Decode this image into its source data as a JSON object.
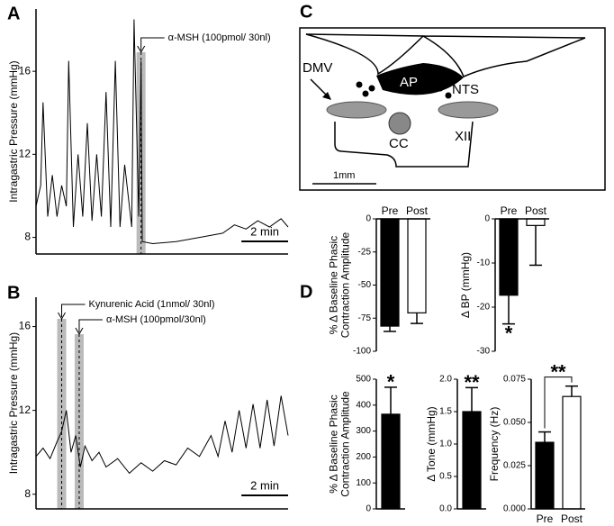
{
  "chart_data": [
    {
      "type": "line",
      "panel": "A",
      "ylabel": "Intragastric  Pressure  (mmHg)",
      "xlim": [
        0,
        10.8
      ],
      "ylim": [
        7.2,
        19
      ],
      "yticks": [
        8,
        12,
        16
      ],
      "scalebar": {
        "value": 2,
        "label": "2 min"
      },
      "annotations": [
        {
          "x": 4.5,
          "label": "α-MSH  (100pmol/ 30nl)"
        }
      ],
      "series": [
        {
          "color": "#000000",
          "x": [
            0,
            0.2,
            0.3,
            0.5,
            0.7,
            0.9,
            1.1,
            1.3,
            1.4,
            1.6,
            1.8,
            2.0,
            2.2,
            2.4,
            2.6,
            2.8,
            3.0,
            3.2,
            3.4,
            3.6,
            3.8,
            4.1,
            4.2,
            4.4,
            4.5,
            4.55,
            5,
            6,
            7,
            8,
            8.5,
            9,
            9.5,
            10,
            10.5,
            10.8
          ],
          "values": [
            9.5,
            10.5,
            14.5,
            9,
            11,
            9,
            10.5,
            9.5,
            16.5,
            8.5,
            12,
            9,
            13.5,
            8.8,
            12,
            9,
            15,
            8.5,
            16.5,
            8.5,
            11.5,
            8.5,
            18.5,
            9,
            16.5,
            7.8,
            7.7,
            7.8,
            8.0,
            8.2,
            8.6,
            8.4,
            8.8,
            8.5,
            8.9,
            8.5
          ]
        }
      ]
    },
    {
      "type": "line",
      "panel": "B",
      "ylabel": "Intragastric Pressure (mmHg)",
      "xlim": [
        0,
        10.8
      ],
      "ylim": [
        7.3,
        17.4
      ],
      "yticks": [
        8,
        12,
        16
      ],
      "scalebar": {
        "value": 2,
        "label": "2 min"
      },
      "annotations": [
        {
          "x": 1.1,
          "label": "Kynurenic Acid  (1nmol/ 30nl)"
        },
        {
          "x": 1.85,
          "label": "α-MSH (100pmol/30nl)"
        }
      ],
      "series": [
        {
          "color": "#000000",
          "x": [
            0,
            0.3,
            0.6,
            0.9,
            1.1,
            1.3,
            1.5,
            1.7,
            1.9,
            2.1,
            2.4,
            2.7,
            3,
            3.5,
            4,
            4.5,
            5,
            5.5,
            6,
            6.5,
            7,
            7.5,
            7.8,
            8.1,
            8.4,
            8.7,
            9,
            9.3,
            9.6,
            9.9,
            10.2,
            10.5,
            10.8
          ],
          "values": [
            9.8,
            10.2,
            9.7,
            10.5,
            11,
            12,
            10,
            10.8,
            9.3,
            10.3,
            9.6,
            10,
            9.3,
            9.7,
            9.0,
            9.5,
            9.1,
            9.6,
            9.4,
            10.2,
            9.8,
            10.8,
            9.8,
            11.5,
            10,
            12,
            10.2,
            12.3,
            10.2,
            12.5,
            10.3,
            12.7,
            10.8
          ]
        }
      ]
    },
    {
      "type": "bar",
      "panel": "D",
      "ylabel": [
        "% Δ  Baseline Phasic",
        "Contraction Amplitude"
      ],
      "categories": [
        "Pre",
        "Post"
      ],
      "colors": [
        "#000000",
        "#ffffff"
      ],
      "values": [
        -81,
        -71
      ],
      "errors": [
        4,
        8
      ],
      "significance": [
        null,
        null
      ],
      "ylim": [
        -100,
        0
      ],
      "yticks": [
        0,
        -25,
        -50,
        -75,
        -100
      ]
    },
    {
      "type": "bar",
      "ylabel": "Δ  BP (mmHg)",
      "categories": [
        "Pre",
        "Post"
      ],
      "colors": [
        "#000000",
        "#ffffff"
      ],
      "values": [
        -17.3,
        -1.5
      ],
      "errors": [
        6.5,
        9
      ],
      "significance": [
        "*",
        null
      ],
      "ylim": [
        -30,
        0
      ],
      "yticks": [
        0,
        -10,
        -20,
        -30
      ]
    },
    {
      "type": "bar",
      "ylabel": [
        "% Δ  Baseline Phasic",
        "Contraction Amplitude"
      ],
      "categories": [
        null
      ],
      "colors": [
        "#000000"
      ],
      "values": [
        365
      ],
      "errors": [
        104
      ],
      "significance": [
        "*"
      ],
      "ylim": [
        0,
        500
      ],
      "yticks": [
        0,
        100,
        200,
        300,
        400,
        500
      ]
    },
    {
      "type": "bar",
      "ylabel": "Δ  Tone (mmHg)",
      "categories": [
        null
      ],
      "colors": [
        "#000000"
      ],
      "values": [
        1.5
      ],
      "errors": [
        0.37
      ],
      "significance": [
        "**"
      ],
      "ylim": [
        0,
        2.0
      ],
      "yticks": [
        {
          "value": 0,
          "label": "0.0"
        },
        {
          "value": 0.5,
          "label": "0.5"
        },
        {
          "value": 1,
          "label": "1.0"
        },
        {
          "value": 1.5,
          "label": "1.5"
        },
        {
          "value": 2,
          "label": "2.0"
        }
      ]
    },
    {
      "type": "bar",
      "ylabel": "Frequency (Hz)",
      "categories": [
        "Pre",
        "Post"
      ],
      "colors": [
        "#000000",
        "#ffffff"
      ],
      "values": [
        0.0385,
        0.065
      ],
      "errors": [
        0.006,
        0.006
      ],
      "comparison_label": "**",
      "ylim": [
        0,
        0.075
      ],
      "yticks": [
        {
          "value": 0,
          "label": "0.000"
        },
        {
          "value": 0.025,
          "label": "0.025"
        },
        {
          "value": 0.05,
          "label": "0.050"
        },
        {
          "value": 0.075,
          "label": "0.075"
        }
      ]
    }
  ],
  "diagram": {
    "panel": "C",
    "labels": {
      "dmv": "DMV",
      "ap": "AP",
      "nts": "NTS",
      "cc": "CC",
      "xii": "XII"
    },
    "scale": "1mm"
  }
}
